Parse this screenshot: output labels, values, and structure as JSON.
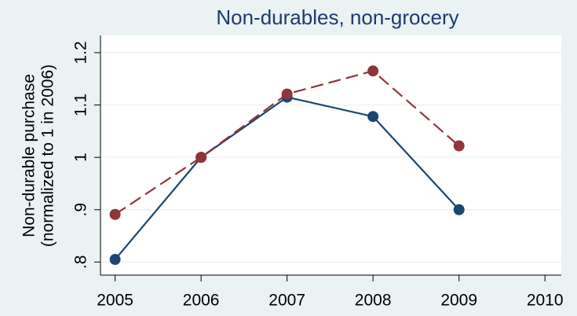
{
  "chart_data": {
    "type": "line",
    "title": "Non-durables, non-grocery",
    "y_label": [
      "Non-durable purchase",
      "(normalized to 1 in 2006)"
    ],
    "x": [
      2005,
      2006,
      2007,
      2008,
      2009
    ],
    "series": [
      {
        "color": "#1a476f",
        "dash": "solid",
        "values": [
          0.805,
          1.0,
          1.115,
          1.078,
          0.9
        ]
      },
      {
        "color": "#90353b",
        "dash": "dashed",
        "values": [
          0.891,
          1.0,
          1.121,
          1.165,
          1.022
        ]
      }
    ],
    "xlim": [
      2004.83,
      2010.19
    ],
    "xticks": [
      2005,
      2006,
      2007,
      2008,
      2009,
      2010
    ],
    "ylim": [
      0.775,
      1.233
    ],
    "yticks": [
      {
        "value": 0.8,
        "label": ".8"
      },
      {
        "value": 0.9,
        "label": ".9"
      },
      1,
      1.1,
      1.2
    ],
    "grid": true
  }
}
